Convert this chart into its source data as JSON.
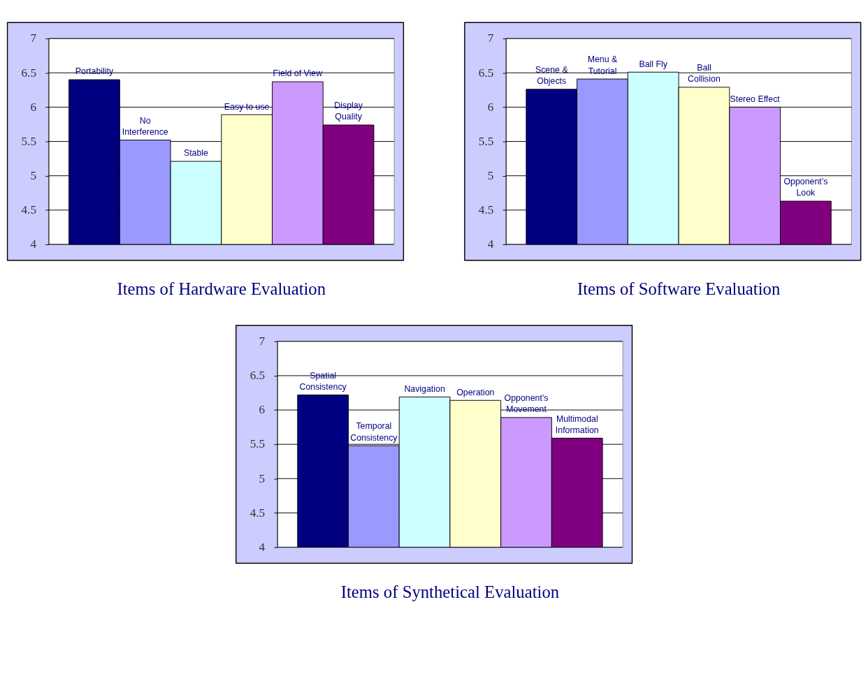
{
  "chart_data": [
    {
      "type": "bar",
      "title": "Items of Hardware Evaluation",
      "categories": [
        "Portability",
        "No\nInterference",
        "Stable",
        "Easy to use",
        "Field of View",
        "Display\nQuality"
      ],
      "values": [
        6.4,
        5.52,
        5.21,
        5.89,
        6.37,
        5.74
      ],
      "colors": [
        "#000080",
        "#9999ff",
        "#ccffff",
        "#ffffcc",
        "#cc99ff",
        "#800080"
      ],
      "ylim": [
        4,
        7
      ],
      "yticks": [
        4,
        4.5,
        5,
        5.5,
        6,
        6.5,
        7
      ],
      "grid": "y"
    },
    {
      "type": "bar",
      "title": "Items of Software Evaluation",
      "categories": [
        "Scene &\nObjects",
        "Menu &\nTutorial",
        "Ball Fly",
        "Ball\nCollision",
        "Stereo Effect",
        "Opponent’s\nLook"
      ],
      "values": [
        6.26,
        6.41,
        6.51,
        6.29,
        6.0,
        4.63
      ],
      "colors": [
        "#000080",
        "#9999ff",
        "#ccffff",
        "#ffffcc",
        "#cc99ff",
        "#800080"
      ],
      "ylim": [
        4,
        7
      ],
      "yticks": [
        4,
        4.5,
        5,
        5.5,
        6,
        6.5,
        7
      ],
      "grid": "y"
    },
    {
      "type": "bar",
      "title": "Items of Synthetical Evaluation",
      "categories": [
        "Spatial\nConsistency",
        "Temporal\nConsistency",
        "Navigation",
        "Operation",
        "Opponent’s\nMovement",
        "Multimodal\nInformation"
      ],
      "values": [
        6.22,
        5.48,
        6.19,
        6.14,
        5.89,
        5.59
      ],
      "colors": [
        "#000080",
        "#9999ff",
        "#ccffff",
        "#ffffcc",
        "#cc99ff",
        "#800080"
      ],
      "ylim": [
        4,
        7
      ],
      "yticks": [
        4,
        4.5,
        5,
        5.5,
        6,
        6.5,
        7
      ],
      "grid": "y"
    }
  ]
}
